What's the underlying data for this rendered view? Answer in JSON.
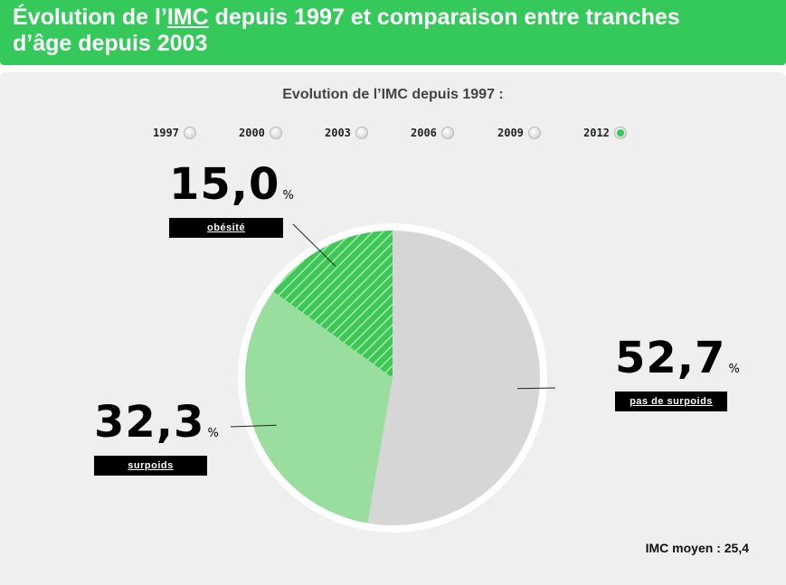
{
  "header": {
    "title_prefix": "Évolution de l’",
    "title_imc": "IMC",
    "title_suffix_line1": " depuis 1997 et comparaison entre tranches",
    "title_line2": "d’âge depuis 2003"
  },
  "subtitle": "Evolution de l’IMC depuis 1997 :",
  "years": [
    {
      "label": "1997",
      "selected": false
    },
    {
      "label": "2000",
      "selected": false
    },
    {
      "label": "2003",
      "selected": false
    },
    {
      "label": "2006",
      "selected": false
    },
    {
      "label": "2009",
      "selected": false
    },
    {
      "label": "2012",
      "selected": true
    }
  ],
  "colors": {
    "accent": "#35c95c",
    "pas_de_surpoids": "#d6d6d6",
    "surpoids": "#9ade9f",
    "obesite": "#3ec757",
    "obesite_hatch": "#a8e9b0"
  },
  "chart_data": {
    "type": "pie",
    "categories": [
      "pas de surpoids",
      "surpoids",
      "obésité"
    ],
    "values": [
      52.7,
      32.3,
      15.0
    ],
    "display_values": [
      "52,7",
      "32,3",
      "15,0"
    ],
    "unit": "%"
  },
  "imc_moyen": "IMC moyen : 25,4"
}
